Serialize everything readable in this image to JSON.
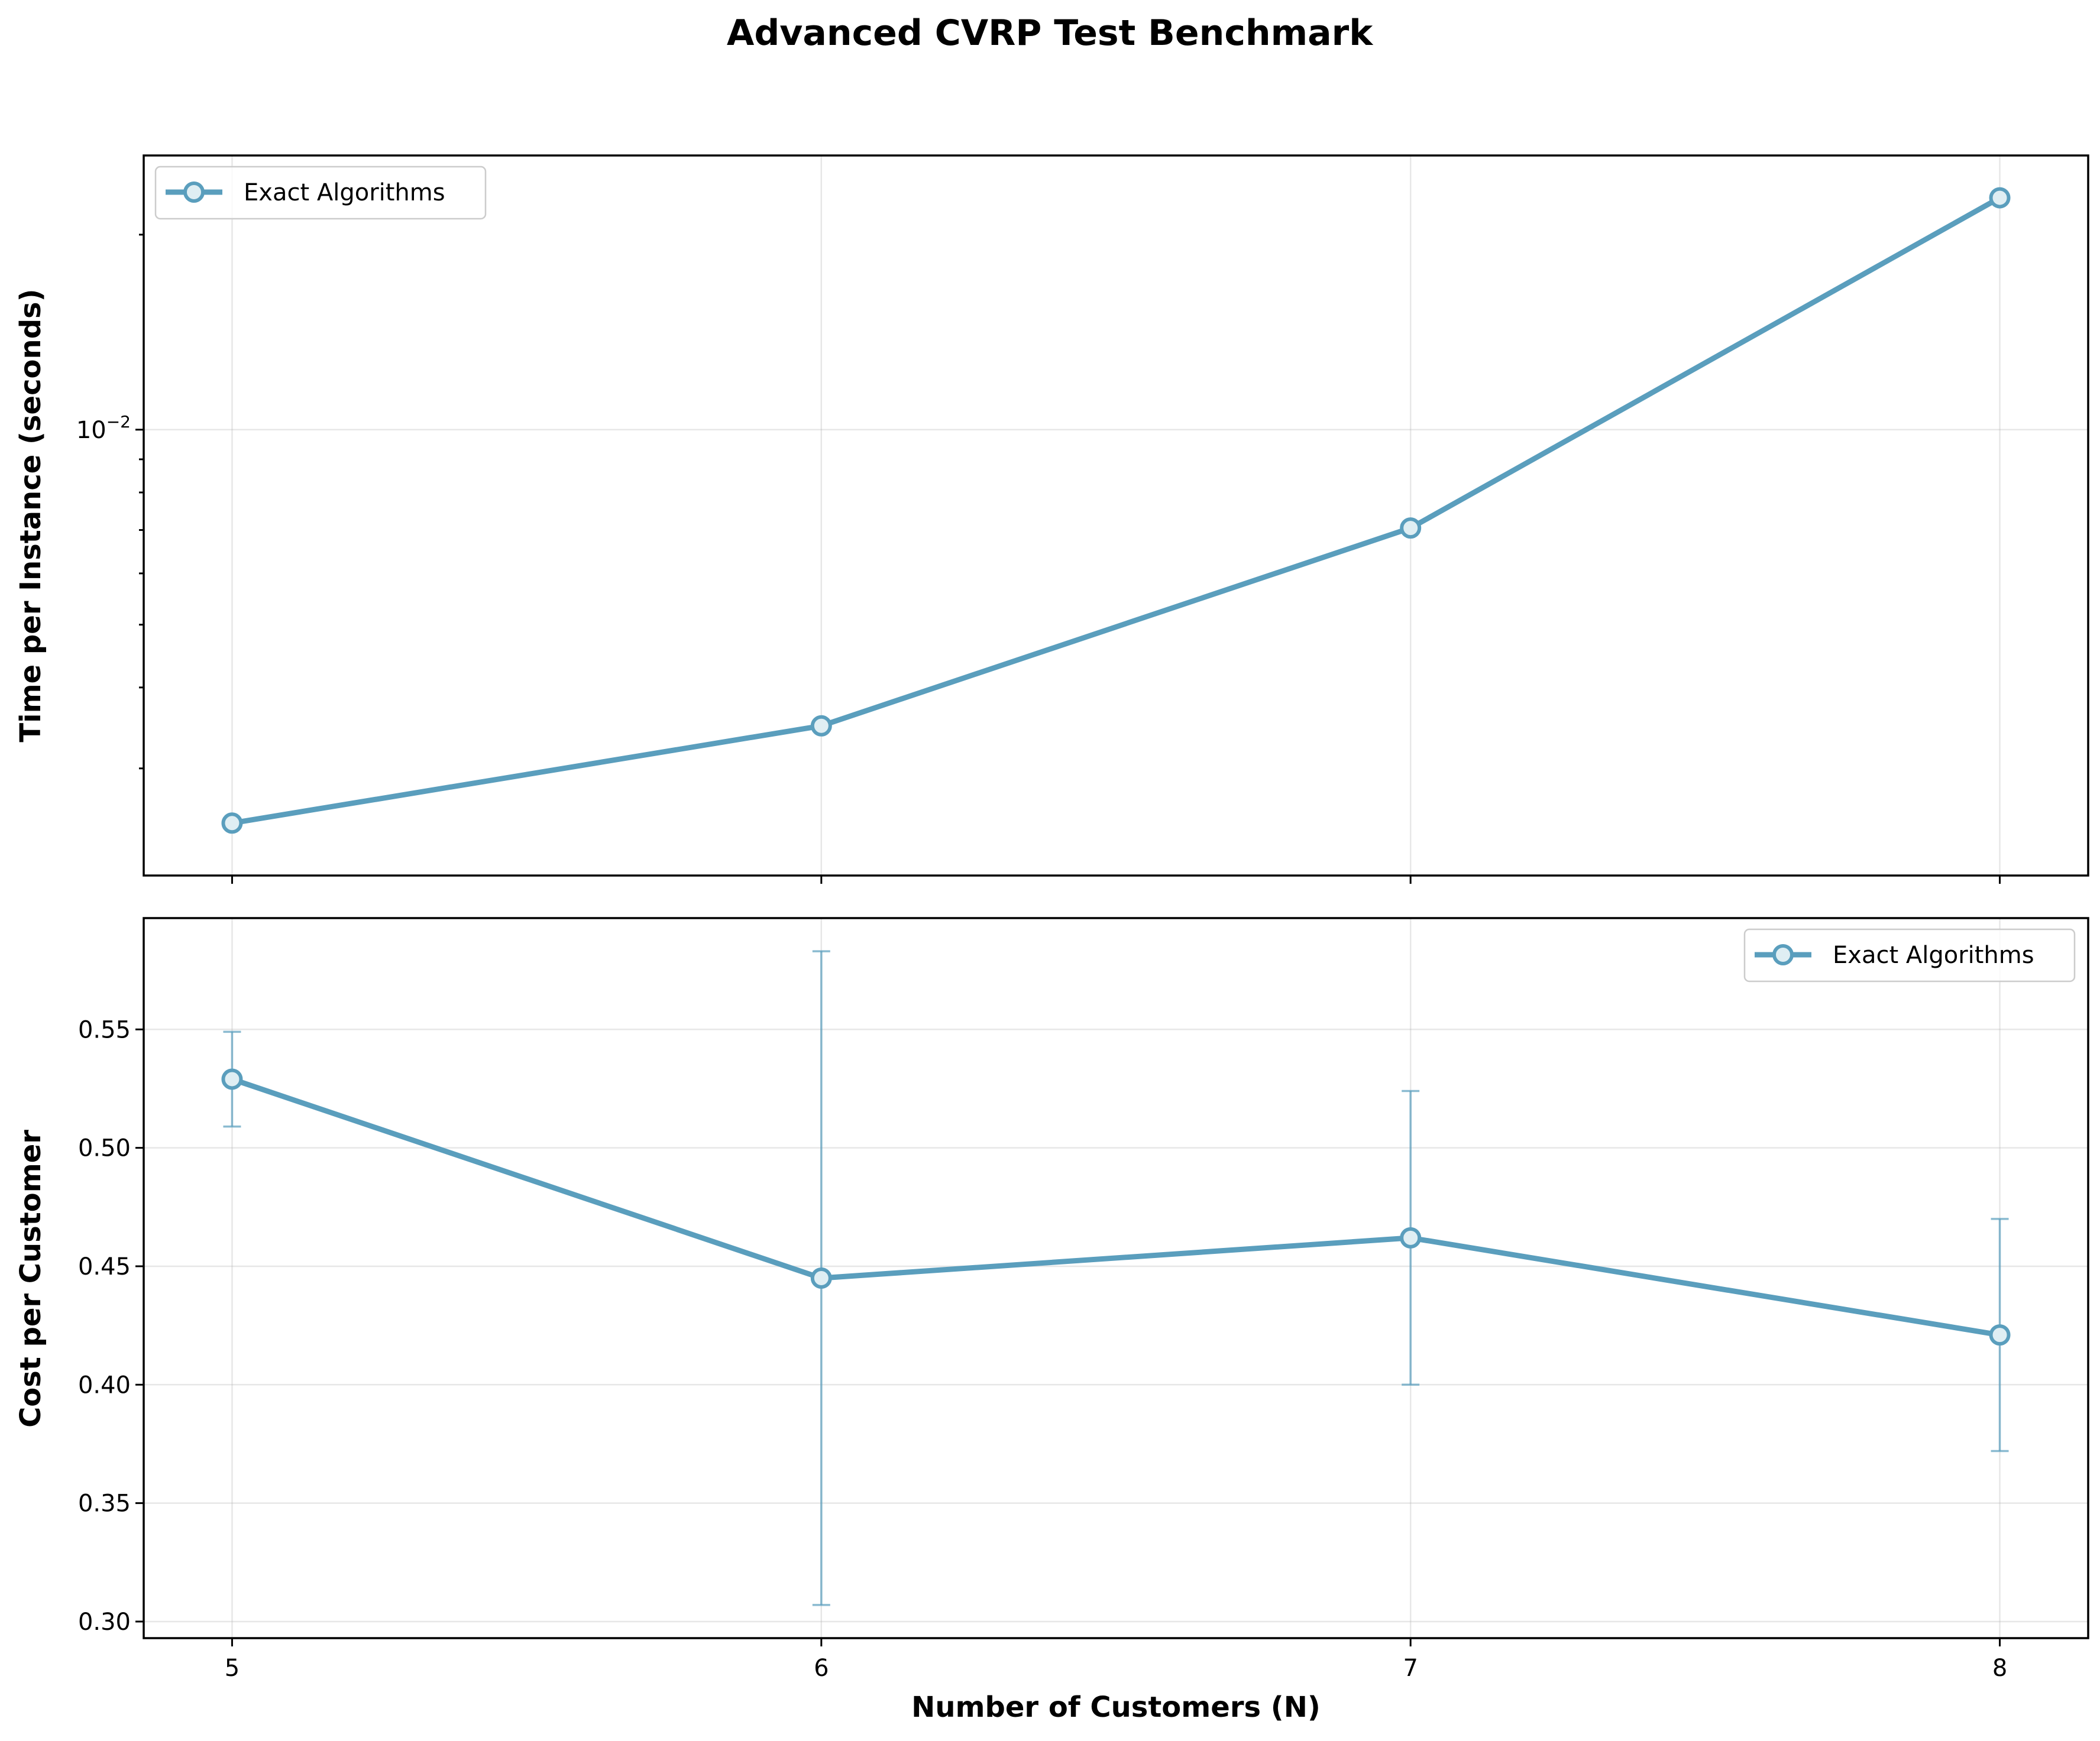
{
  "chart_data": [
    {
      "type": "line",
      "title": "Advanced CVRP Test Benchmark",
      "ylabel": "Time per Instance (seconds)",
      "yscale": "log",
      "ylim": [
        0.00205,
        0.0265
      ],
      "x": [
        5,
        6,
        7,
        8
      ],
      "xlim": [
        4.85,
        8.15
      ],
      "series": [
        {
          "name": "Exact Algorithms",
          "values": [
            0.00247,
            0.00349,
            0.00705,
            0.0228
          ],
          "color": "#5a9ebd"
        }
      ],
      "yticks": [
        {
          "value": 0.01,
          "base": "10",
          "exp": "−2"
        }
      ],
      "grid": true,
      "legend": "top-left"
    },
    {
      "type": "line",
      "xlabel": "Number of Customers (N)",
      "ylabel": "Cost per Customer",
      "ylim": [
        0.293,
        0.597
      ],
      "x": [
        5,
        6,
        7,
        8
      ],
      "xlim": [
        4.85,
        8.15
      ],
      "xticks": [
        "5",
        "6",
        "7",
        "8"
      ],
      "yticks": [
        "0.30",
        "0.35",
        "0.40",
        "0.45",
        "0.50",
        "0.55"
      ],
      "series": [
        {
          "name": "Exact Algorithms",
          "values": [
            0.529,
            0.445,
            0.462,
            0.421
          ],
          "error": [
            0.02,
            0.138,
            0.062,
            0.049
          ],
          "color": "#5a9ebd"
        }
      ],
      "grid": true,
      "legend": "top-right"
    }
  ]
}
